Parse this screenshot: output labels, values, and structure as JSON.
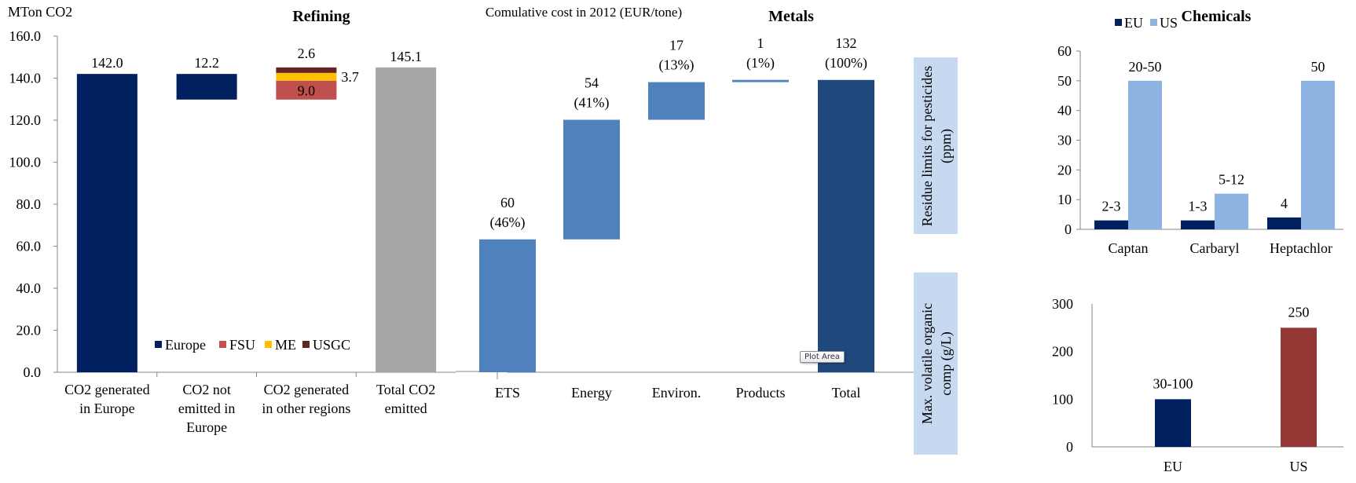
{
  "chart_data": [
    {
      "id": "refining",
      "type": "bar",
      "subtype": "waterfall-stacked",
      "title": "Refining",
      "ylabel": "MTon CO2",
      "xlabel": "",
      "ylim": [
        0,
        160
      ],
      "yticks": [
        "0.0",
        "20.0",
        "40.0",
        "60.0",
        "80.0",
        "100.0",
        "120.0",
        "140.0",
        "160.0"
      ],
      "grid": false,
      "categories": [
        [
          "CO2 generated",
          "in Europe"
        ],
        [
          "CO2 not",
          "emitted in",
          "Europe"
        ],
        [
          "CO2 generated",
          "in other regions"
        ],
        [
          "Total CO2",
          "emitted"
        ]
      ],
      "series": [
        {
          "name": "Europe",
          "color": "#002060"
        },
        {
          "name": "FSU",
          "color": "#C0504D"
        },
        {
          "name": "ME",
          "color": "#FFC000"
        },
        {
          "name": "USGC",
          "color": "#632523"
        }
      ],
      "bars": [
        {
          "category": 0,
          "segments": [
            {
              "series": "Europe",
              "base": 0,
              "value": 142.0
            }
          ],
          "label": "142.0"
        },
        {
          "category": 1,
          "segments": [
            {
              "series": "Europe",
              "base": 129.8,
              "value": 12.2
            }
          ],
          "label": "12.2"
        },
        {
          "category": 2,
          "segments": [
            {
              "series": "FSU",
              "base": 129.8,
              "value": 9.0,
              "label": "9.0"
            },
            {
              "series": "ME",
              "base": 138.8,
              "value": 3.7,
              "label": "3.7"
            },
            {
              "series": "USGC",
              "base": 142.5,
              "value": 2.6,
              "label": "2.6"
            }
          ]
        },
        {
          "category": 3,
          "segments": [
            {
              "series": "Total",
              "base": 0,
              "value": 145.1,
              "color": "#A6A6A6"
            }
          ],
          "label": "145.1"
        }
      ],
      "legend_position": "bottom-center-inside"
    },
    {
      "id": "metals",
      "type": "bar",
      "subtype": "waterfall",
      "title": "Metals",
      "subtitle": "Comulative cost in 2012 (EUR/tone)",
      "ylim": [
        0,
        140
      ],
      "grid": false,
      "categories": [
        "ETS",
        "Energy",
        "Environ.",
        "Products",
        "Total"
      ],
      "values": [
        60,
        54,
        17,
        1,
        132
      ],
      "bases": [
        0,
        60,
        114,
        131,
        0
      ],
      "labels": [
        [
          "60",
          "(46%)"
        ],
        [
          "54",
          "(41%)"
        ],
        [
          "17",
          "(13%)"
        ],
        [
          "1",
          "(1%)"
        ],
        [
          "132",
          "(100%)"
        ]
      ],
      "colors": [
        "#4F81BD",
        "#4F81BD",
        "#4F81BD",
        "#4F81BD",
        "#1F497D"
      ]
    },
    {
      "id": "chemicals-pesticides",
      "type": "bar",
      "title": "Chemicals",
      "ylabel": "Residue limits for pesticides (ppm)",
      "ylim": [
        0,
        60
      ],
      "yticks": [
        "0",
        "10",
        "20",
        "30",
        "40",
        "50",
        "60"
      ],
      "grid": false,
      "categories": [
        "Captan",
        "Carbaryl",
        "Heptachlor"
      ],
      "series": [
        {
          "name": "EU",
          "color": "#002060",
          "values": [
            3,
            3,
            4
          ],
          "labels": [
            "2-3",
            "1-3",
            "4"
          ]
        },
        {
          "name": "US",
          "color": "#8DB3E2",
          "values": [
            50,
            12,
            50
          ],
          "labels": [
            "20-50",
            "5-12",
            "50"
          ]
        }
      ],
      "legend_position": "top"
    },
    {
      "id": "chemicals-voc",
      "type": "bar",
      "ylabel": "Max. volatile organic comp (g/L)",
      "ylim": [
        0,
        300
      ],
      "yticks": [
        "0",
        "100",
        "200",
        "300"
      ],
      "grid": false,
      "categories": [
        "EU",
        "US"
      ],
      "values": [
        100,
        250
      ],
      "labels": [
        "30-100",
        "250"
      ],
      "colors": [
        "#002060",
        "#953735"
      ]
    }
  ],
  "tooltip": "Plot Area"
}
